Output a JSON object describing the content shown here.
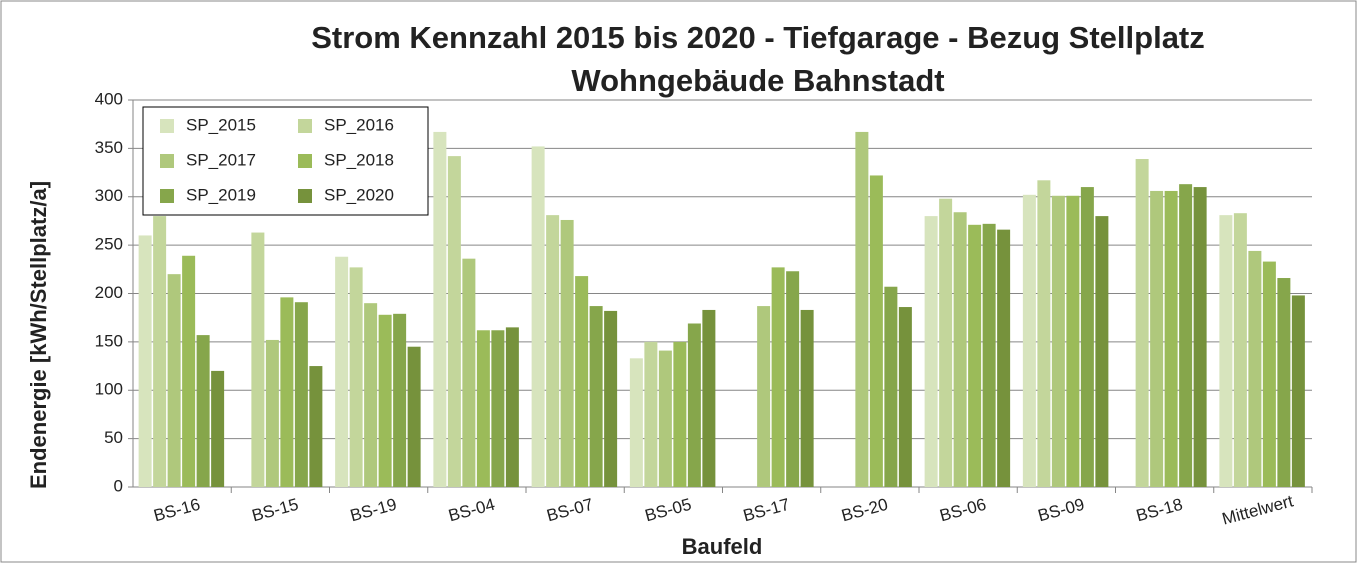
{
  "chart_data": {
    "type": "bar",
    "title": "Strom Kennzahl 2015 bis 2020 - Tiefgarage - Bezug Stellplatz",
    "subtitle": "Wohngebäude Bahnstadt",
    "x_label": "Baufeld",
    "y_label": "Endenergie [kWh/Stellplatz/a]",
    "categories": [
      "BS-16",
      "BS-15",
      "BS-19",
      "BS-04",
      "BS-07",
      "BS-05",
      "BS-17",
      "BS-20",
      "BS-06",
      "BS-09",
      "BS-18",
      "Mittelwert"
    ],
    "series": [
      {
        "name": "SP_2015",
        "color": "#d7e4bd",
        "values": [
          260,
          null,
          238,
          367,
          352,
          133,
          null,
          null,
          280,
          302,
          null,
          281
        ]
      },
      {
        "name": "SP_2016",
        "color": "#c3d69b",
        "values": [
          280,
          263,
          227,
          342,
          281,
          150,
          null,
          null,
          298,
          317,
          339,
          283
        ]
      },
      {
        "name": "SP_2017",
        "color": "#afc87c",
        "values": [
          220,
          152,
          190,
          236,
          276,
          141,
          187,
          367,
          284,
          301,
          306,
          244
        ]
      },
      {
        "name": "SP_2018",
        "color": "#9bbb59",
        "values": [
          239,
          196,
          178,
          162,
          218,
          150,
          227,
          322,
          271,
          301,
          306,
          233
        ]
      },
      {
        "name": "SP_2019",
        "color": "#86a64b",
        "values": [
          157,
          191,
          179,
          162,
          187,
          169,
          223,
          207,
          272,
          310,
          313,
          216
        ]
      },
      {
        "name": "SP_2020",
        "color": "#76923c",
        "values": [
          120,
          125,
          145,
          165,
          182,
          183,
          183,
          186,
          266,
          280,
          310,
          198
        ]
      }
    ],
    "ylim": [
      0,
      400
    ],
    "yticks": [
      0,
      50,
      100,
      150,
      200,
      250,
      300,
      350,
      400
    ],
    "grid": true,
    "legend": "upper left"
  }
}
